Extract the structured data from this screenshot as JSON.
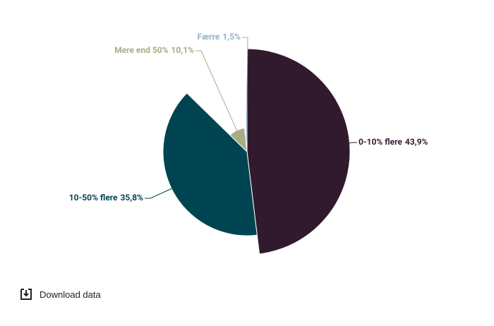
{
  "chart_data": {
    "type": "pie",
    "categories": [
      "0-10% flere",
      "10-50% flere",
      "Mere end 50%",
      "Færre"
    ],
    "values": [
      43.9,
      35.8,
      10.1,
      1.5
    ],
    "value_labels": [
      "43,9%",
      "35,8%",
      "10,1%",
      "1,5%"
    ],
    "colors": [
      "#321a2e",
      "#004452",
      "#a8ad86",
      "#8fb3c9"
    ]
  },
  "download_label": "Download data"
}
